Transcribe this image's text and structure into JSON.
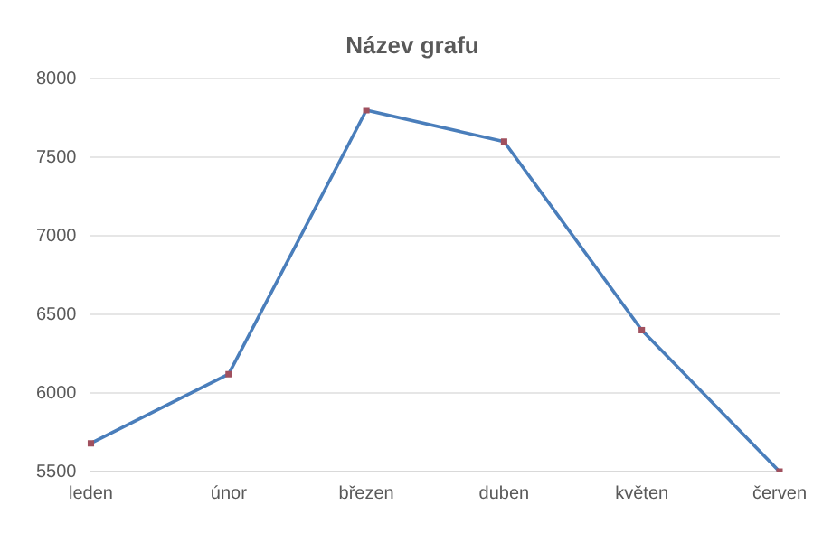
{
  "chart_data": {
    "type": "line",
    "title": "Název grafu",
    "categories": [
      "leden",
      "únor",
      "březen",
      "duben",
      "květen",
      "červen"
    ],
    "series": [
      {
        "color": "#4a7ebb",
        "values": [
          5680,
          6120,
          7800,
          7600,
          6400,
          5500
        ]
      }
    ],
    "ylim": [
      5500,
      8000
    ],
    "yticks": [
      5500,
      6000,
      6500,
      7000,
      7500,
      8000
    ],
    "grid": "y",
    "marker": "square",
    "line_style": "solid",
    "legend": false
  }
}
